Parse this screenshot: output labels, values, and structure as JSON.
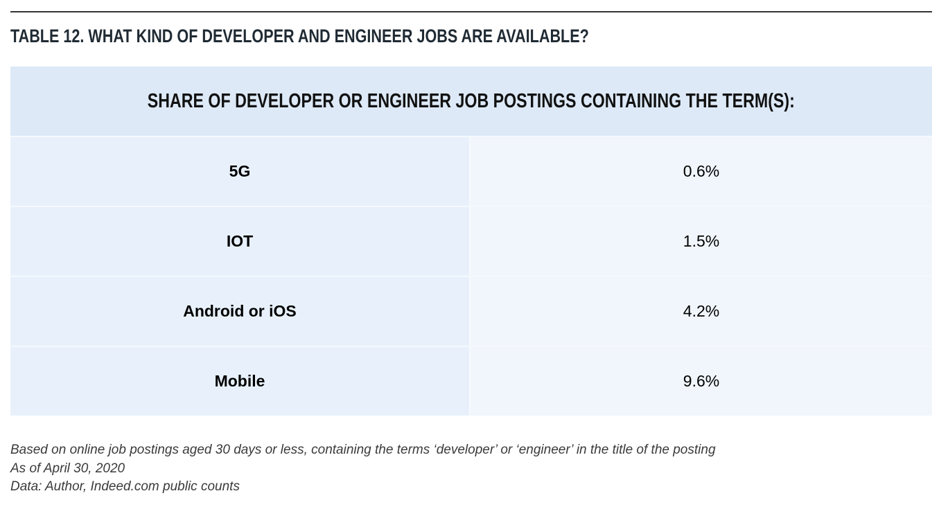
{
  "title": "TABLE 12. WHAT KIND OF DEVELOPER AND ENGINEER JOBS ARE AVAILABLE?",
  "table": {
    "header": "SHARE OF DEVELOPER OR ENGINEER JOB POSTINGS CONTAINING THE TERM(S):",
    "rows": [
      {
        "term": "5G",
        "share": "0.6%"
      },
      {
        "term": "IOT",
        "share": "1.5%"
      },
      {
        "term": "Android or iOS",
        "share": "4.2%"
      },
      {
        "term": "Mobile",
        "share": "9.6%"
      }
    ]
  },
  "notes": [
    "Based on online job postings aged 30 days or less, containing the terms ‘developer’ or ‘engineer’ in the title of the posting",
    "As of April 30, 2020",
    "Data: Author, Indeed.com public counts"
  ],
  "colors": {
    "header_background": "#dde9f7",
    "term_cell_background": "#e8f1fb",
    "value_cell_background": "#f1f6fc",
    "rule": "#333333"
  }
}
